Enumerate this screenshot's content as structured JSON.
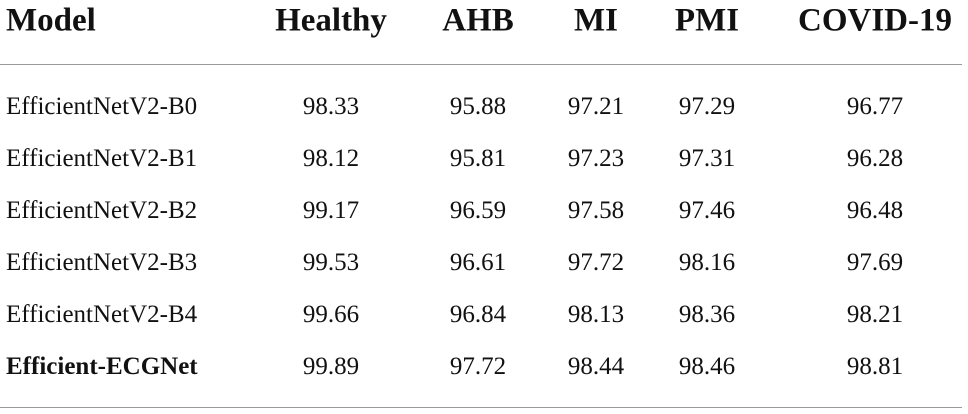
{
  "table": {
    "header": [
      "Model",
      "Healthy",
      "AHB",
      "MI",
      "PMI",
      "COVID-19"
    ],
    "rows": [
      [
        "EfficientNetV2-B0",
        "98.33",
        "95.88",
        "97.21",
        "97.29",
        "96.77"
      ],
      [
        "EfficientNetV2-B1",
        "98.12",
        "95.81",
        "97.23",
        "97.31",
        "96.28"
      ],
      [
        "EfficientNetV2-B2",
        "99.17",
        "96.59",
        "97.58",
        "97.46",
        "96.48"
      ],
      [
        "EfficientNetV2-B3",
        "99.53",
        "96.61",
        "97.72",
        "98.16",
        "97.69"
      ],
      [
        "EfficientNetV2-B4",
        "99.66",
        "96.84",
        "98.13",
        "98.36",
        "98.21"
      ],
      [
        "Efficient-ECGNet",
        "99.89",
        "97.72",
        "98.44",
        "98.46",
        "98.81"
      ]
    ]
  }
}
